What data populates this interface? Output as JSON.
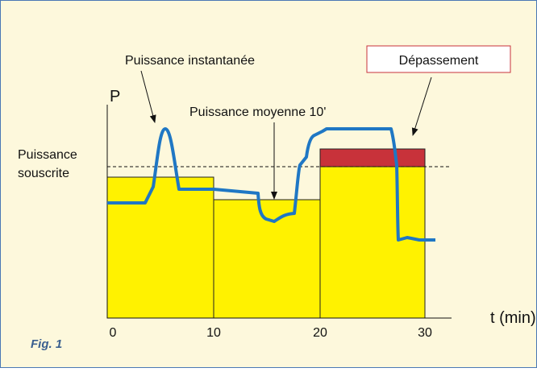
{
  "figure": {
    "y_axis_label": "P",
    "x_axis_label": "t (min)",
    "x_ticks": [
      0,
      10,
      20,
      30
    ],
    "annotations": {
      "instant_power": "Puissance instantanée",
      "average_power": "Puissance moyenne 10'",
      "overshoot": "Dépassement",
      "subscribed_line1": "Puissance",
      "subscribed_line2": "souscrite"
    },
    "caption": "Fig. 1"
  }
}
